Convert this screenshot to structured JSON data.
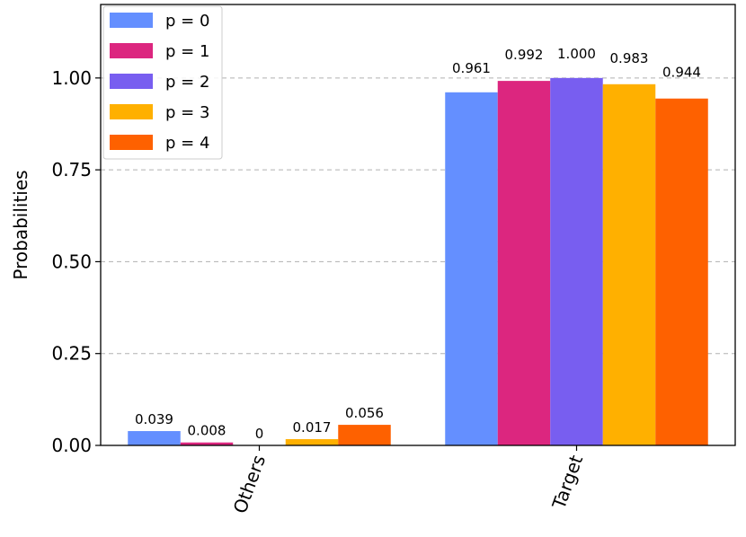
{
  "chart_data": {
    "type": "bar",
    "categories": [
      "Others",
      "Target"
    ],
    "series": [
      {
        "name": "p = 0",
        "values": [
          0.039,
          0.961
        ],
        "labels": [
          "0.039",
          "0.961"
        ],
        "color": "#648fff"
      },
      {
        "name": "p = 1",
        "values": [
          0.008,
          0.992
        ],
        "labels": [
          "0.008",
          "0.992"
        ],
        "color": "#dc267f"
      },
      {
        "name": "p = 2",
        "values": [
          0,
          1.0
        ],
        "labels": [
          "0",
          "1.000"
        ],
        "color": "#785ef0"
      },
      {
        "name": "p = 3",
        "values": [
          0.017,
          0.983
        ],
        "labels": [
          "0.017",
          "0.983"
        ],
        "color": "#ffb000"
      },
      {
        "name": "p = 4",
        "values": [
          0.056,
          0.944
        ],
        "labels": [
          "0.056",
          "0.944"
        ],
        "color": "#fe6100"
      }
    ],
    "ylabel": "Probabilities",
    "xlabel": "",
    "title": "",
    "ylim": [
      0,
      1.2
    ],
    "yticks": [
      "0.00",
      "0.25",
      "0.50",
      "0.75",
      "1.00"
    ],
    "ytick_values": [
      0,
      0.25,
      0.5,
      0.75,
      1.0
    ],
    "grid": "horizontal dashed",
    "legend_position": "top-left"
  }
}
